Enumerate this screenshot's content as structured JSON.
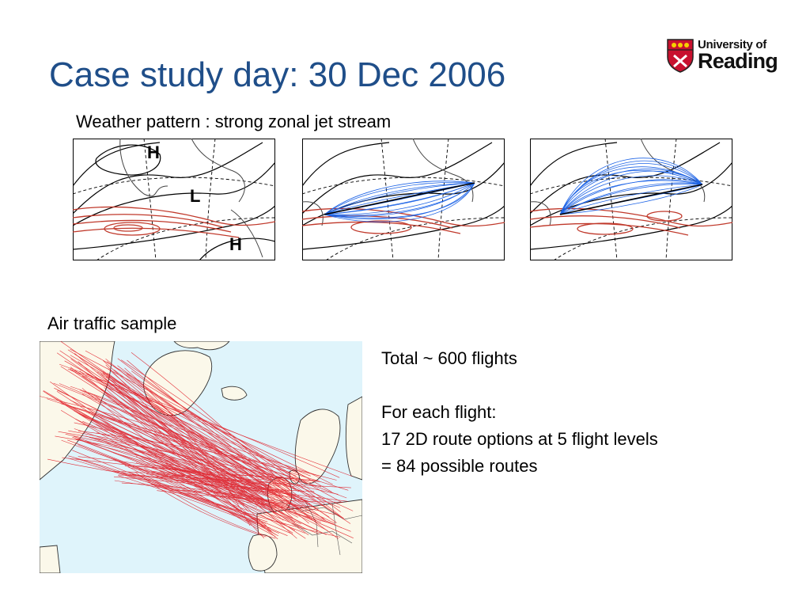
{
  "title": "Case study day: 30 Dec 2006",
  "logo": {
    "line1": "University of",
    "line2": "Reading"
  },
  "weather": {
    "caption": "Weather pattern : strong zonal jet stream",
    "pressure_labels": [
      "H",
      "L",
      "H"
    ]
  },
  "traffic": {
    "caption": "Air traffic sample",
    "total": "Total ~ 600 flights",
    "per_flight_heading": "For each flight:",
    "route_options": "17 2D route options at 5 flight levels",
    "possible_routes": "= 84 possible routes"
  },
  "colors": {
    "title": "#1f4e89",
    "jet_contours": "#c0392b",
    "route_lines": "#1e64e6",
    "flight_tracks": "#e0101a",
    "ocean": "#dff4fb",
    "land": "#fbf8ea",
    "logo_shield": "#c8102e"
  }
}
